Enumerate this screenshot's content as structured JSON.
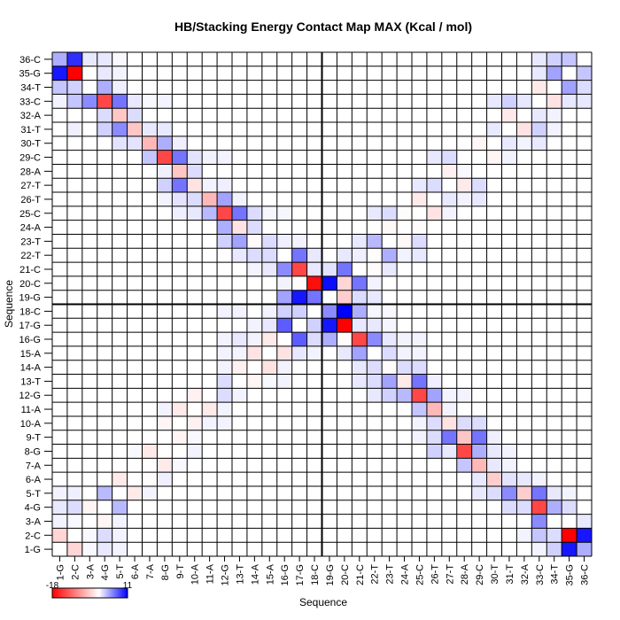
{
  "chart_data": {
    "type": "heatmap",
    "title": "HB/Stacking Energy Contact Map MAX (Kcal / mol)",
    "xlabel": "Sequence",
    "ylabel": "Sequence",
    "labels": [
      "1-G",
      "2-C",
      "3-A",
      "4-G",
      "5-T",
      "6-A",
      "7-A",
      "8-G",
      "9-T",
      "10-A",
      "11-A",
      "12-G",
      "13-T",
      "14-A",
      "15-A",
      "16-G",
      "17-G",
      "18-C",
      "19-G",
      "20-C",
      "21-C",
      "22-T",
      "23-T",
      "24-A",
      "25-C",
      "26-T",
      "27-T",
      "28-A",
      "29-C",
      "30-T",
      "31-T",
      "32-A",
      "33-C",
      "34-T",
      "35-G",
      "36-C"
    ],
    "colorbar": {
      "min": -18,
      "max": 11,
      "min_label": "-18",
      "max_label": "11",
      "min_color": "#ff0000",
      "mid_color": "#ffffff",
      "max_color": "#0000ff"
    },
    "grid": true,
    "cells_note_format": "[y_index, x_index, value]",
    "cells": [
      [
        36,
        1,
        3.5
      ],
      [
        36,
        2,
        9
      ],
      [
        36,
        3,
        1
      ],
      [
        36,
        4,
        1
      ],
      [
        36,
        5,
        0.3
      ],
      [
        36,
        33,
        1
      ],
      [
        36,
        34,
        2
      ],
      [
        36,
        35,
        2.5
      ],
      [
        35,
        1,
        10
      ],
      [
        35,
        2,
        -18
      ],
      [
        35,
        4,
        1
      ],
      [
        35,
        5,
        0.5
      ],
      [
        35,
        33,
        1
      ],
      [
        35,
        34,
        4
      ],
      [
        35,
        36,
        2.5
      ],
      [
        34,
        1,
        2.5
      ],
      [
        34,
        2,
        2
      ],
      [
        34,
        4,
        3.5
      ],
      [
        34,
        5,
        0.7
      ],
      [
        34,
        33,
        -1.5
      ],
      [
        34,
        35,
        4
      ],
      [
        34,
        36,
        1.5
      ],
      [
        33,
        1,
        0.5
      ],
      [
        33,
        2,
        2.5
      ],
      [
        33,
        3,
        5
      ],
      [
        33,
        4,
        -13
      ],
      [
        33,
        5,
        6
      ],
      [
        33,
        6,
        1
      ],
      [
        33,
        7,
        0.3
      ],
      [
        33,
        8,
        0.5
      ],
      [
        33,
        30,
        1
      ],
      [
        33,
        31,
        2
      ],
      [
        33,
        32,
        1
      ],
      [
        33,
        34,
        -2
      ],
      [
        33,
        35,
        1
      ],
      [
        33,
        36,
        1
      ],
      [
        32,
        4,
        1.5
      ],
      [
        32,
        5,
        -4
      ],
      [
        32,
        6,
        1.5
      ],
      [
        32,
        31,
        -1.5
      ],
      [
        32,
        33,
        1
      ],
      [
        32,
        34,
        0.5
      ],
      [
        31,
        2,
        0.7
      ],
      [
        31,
        4,
        2
      ],
      [
        31,
        5,
        5
      ],
      [
        31,
        6,
        -4
      ],
      [
        31,
        7,
        1
      ],
      [
        31,
        8,
        1
      ],
      [
        31,
        30,
        1
      ],
      [
        31,
        32,
        -2
      ],
      [
        31,
        33,
        2
      ],
      [
        31,
        34,
        0.5
      ],
      [
        30,
        5,
        1.2
      ],
      [
        30,
        6,
        1.2
      ],
      [
        30,
        7,
        -5
      ],
      [
        30,
        8,
        3.5
      ],
      [
        30,
        9,
        0.7
      ],
      [
        30,
        29,
        -0.7
      ],
      [
        30,
        31,
        1
      ],
      [
        30,
        32,
        0.5
      ],
      [
        30,
        33,
        1
      ],
      [
        29,
        7,
        2.5
      ],
      [
        29,
        8,
        -13
      ],
      [
        29,
        9,
        6
      ],
      [
        29,
        10,
        1.2
      ],
      [
        29,
        11,
        0.5
      ],
      [
        29,
        12,
        0.5
      ],
      [
        29,
        26,
        1
      ],
      [
        29,
        27,
        1.5
      ],
      [
        29,
        30,
        -0.7
      ],
      [
        29,
        31,
        0.5
      ],
      [
        28,
        8,
        0.7
      ],
      [
        28,
        9,
        -4
      ],
      [
        28,
        10,
        1.5
      ],
      [
        28,
        27,
        -1
      ],
      [
        28,
        28,
        0.3
      ],
      [
        27,
        8,
        2
      ],
      [
        27,
        9,
        6
      ],
      [
        27,
        10,
        -2
      ],
      [
        27,
        11,
        0.5
      ],
      [
        27,
        12,
        0.7
      ],
      [
        27,
        25,
        1
      ],
      [
        27,
        26,
        1.5
      ],
      [
        27,
        28,
        -1.5
      ],
      [
        27,
        29,
        1.5
      ],
      [
        26,
        8,
        0.5
      ],
      [
        26,
        9,
        1.2
      ],
      [
        26,
        10,
        1.5
      ],
      [
        26,
        11,
        -5
      ],
      [
        26,
        12,
        4
      ],
      [
        26,
        13,
        0.5
      ],
      [
        26,
        25,
        -1.5
      ],
      [
        26,
        27,
        1
      ],
      [
        26,
        28,
        0.5
      ],
      [
        26,
        29,
        1
      ],
      [
        25,
        9,
        0.7
      ],
      [
        25,
        10,
        1
      ],
      [
        25,
        11,
        3
      ],
      [
        25,
        12,
        -13
      ],
      [
        25,
        13,
        6
      ],
      [
        25,
        14,
        1.5
      ],
      [
        25,
        15,
        0.4
      ],
      [
        25,
        16,
        0.4
      ],
      [
        25,
        22,
        1
      ],
      [
        25,
        23,
        1.5
      ],
      [
        25,
        24,
        -0.2
      ],
      [
        25,
        26,
        -2
      ],
      [
        25,
        27,
        0.5
      ],
      [
        24,
        12,
        3.5
      ],
      [
        24,
        13,
        -2
      ],
      [
        24,
        14,
        1.5
      ],
      [
        24,
        23,
        -0.5
      ],
      [
        24,
        25,
        -0.2
      ],
      [
        23,
        12,
        2
      ],
      [
        23,
        13,
        4
      ],
      [
        23,
        14,
        -0.3
      ],
      [
        23,
        15,
        1.5
      ],
      [
        23,
        16,
        0.7
      ],
      [
        23,
        17,
        0.5
      ],
      [
        23,
        21,
        1
      ],
      [
        23,
        22,
        3
      ],
      [
        23,
        24,
        -0.5
      ],
      [
        23,
        25,
        1.5
      ],
      [
        22,
        13,
        1
      ],
      [
        22,
        14,
        1.5
      ],
      [
        22,
        15,
        1.5
      ],
      [
        22,
        17,
        6
      ],
      [
        22,
        18,
        1
      ],
      [
        22,
        20,
        1
      ],
      [
        22,
        21,
        0.7
      ],
      [
        22,
        22,
        -0.2
      ],
      [
        22,
        23,
        3.5
      ],
      [
        22,
        24,
        0.5
      ],
      [
        22,
        25,
        1
      ],
      [
        21,
        14,
        0.5
      ],
      [
        21,
        15,
        1
      ],
      [
        21,
        16,
        5
      ],
      [
        21,
        17,
        -13
      ],
      [
        21,
        18,
        1
      ],
      [
        21,
        19,
        1.2
      ],
      [
        21,
        20,
        6
      ],
      [
        21,
        22,
        -0.3
      ],
      [
        21,
        23,
        1
      ],
      [
        20,
        16,
        0.5
      ],
      [
        20,
        17,
        -0.3
      ],
      [
        20,
        18,
        -17
      ],
      [
        20,
        19,
        10.5
      ],
      [
        20,
        20,
        -3
      ],
      [
        20,
        21,
        6
      ],
      [
        20,
        22,
        0.5
      ],
      [
        19,
        16,
        4
      ],
      [
        19,
        17,
        10
      ],
      [
        19,
        18,
        6
      ],
      [
        19,
        20,
        -3.5
      ],
      [
        19,
        21,
        1.5
      ],
      [
        19,
        22,
        1
      ],
      [
        18,
        12,
        0.5
      ],
      [
        18,
        13,
        0.5
      ],
      [
        18,
        15,
        0.5
      ],
      [
        18,
        16,
        2
      ],
      [
        18,
        17,
        2
      ],
      [
        18,
        19,
        5
      ],
      [
        18,
        20,
        11
      ],
      [
        18,
        21,
        3.5
      ],
      [
        18,
        22,
        0.4
      ],
      [
        18,
        23,
        0.3
      ],
      [
        17,
        14,
        0.5
      ],
      [
        17,
        15,
        1
      ],
      [
        17,
        16,
        7
      ],
      [
        17,
        18,
        2
      ],
      [
        17,
        19,
        10
      ],
      [
        17,
        20,
        -18
      ],
      [
        17,
        21,
        1
      ],
      [
        17,
        22,
        1
      ],
      [
        17,
        23,
        0.4
      ],
      [
        16,
        12,
        0.5
      ],
      [
        16,
        13,
        1
      ],
      [
        16,
        14,
        0.5
      ],
      [
        16,
        15,
        -1.5
      ],
      [
        16,
        17,
        7
      ],
      [
        16,
        18,
        1.5
      ],
      [
        16,
        19,
        3.5
      ],
      [
        16,
        20,
        -0.3
      ],
      [
        16,
        21,
        -13
      ],
      [
        16,
        22,
        5
      ],
      [
        16,
        23,
        1
      ],
      [
        16,
        24,
        0.5
      ],
      [
        16,
        25,
        0.5
      ],
      [
        15,
        12,
        0.5
      ],
      [
        15,
        13,
        0.5
      ],
      [
        15,
        14,
        -2
      ],
      [
        15,
        16,
        -2
      ],
      [
        15,
        17,
        1
      ],
      [
        15,
        18,
        0.5
      ],
      [
        15,
        20,
        1
      ],
      [
        15,
        21,
        4
      ],
      [
        15,
        23,
        1.5
      ],
      [
        15,
        24,
        0.5
      ],
      [
        15,
        25,
        0.5
      ],
      [
        14,
        12,
        0.5
      ],
      [
        14,
        13,
        -1
      ],
      [
        14,
        15,
        -2
      ],
      [
        14,
        16,
        0.5
      ],
      [
        14,
        21,
        1
      ],
      [
        14,
        22,
        1.5
      ],
      [
        14,
        23,
        -0.3
      ],
      [
        14,
        24,
        1.5
      ],
      [
        14,
        25,
        1.5
      ],
      [
        13,
        12,
        1.5
      ],
      [
        13,
        14,
        -0.7
      ],
      [
        13,
        15,
        0.3
      ],
      [
        13,
        16,
        0.5
      ],
      [
        13,
        21,
        1
      ],
      [
        13,
        22,
        1.5
      ],
      [
        13,
        23,
        4
      ],
      [
        13,
        24,
        -1.5
      ],
      [
        13,
        25,
        6
      ],
      [
        13,
        26,
        0.7
      ],
      [
        12,
        10,
        -1
      ],
      [
        12,
        12,
        1.5
      ],
      [
        12,
        13,
        0.5
      ],
      [
        12,
        22,
        1
      ],
      [
        12,
        23,
        2
      ],
      [
        12,
        24,
        3
      ],
      [
        12,
        25,
        -13
      ],
      [
        12,
        26,
        4
      ],
      [
        12,
        27,
        0.5
      ],
      [
        12,
        28,
        0.5
      ],
      [
        11,
        8,
        0.5
      ],
      [
        11,
        9,
        -1.5
      ],
      [
        11,
        11,
        -1.5
      ],
      [
        11,
        12,
        0.5
      ],
      [
        11,
        25,
        2.5
      ],
      [
        11,
        26,
        -5
      ],
      [
        11,
        27,
        0.5
      ],
      [
        10,
        8,
        -0.7
      ],
      [
        10,
        10,
        -1
      ],
      [
        10,
        11,
        0.5
      ],
      [
        10,
        12,
        0.5
      ],
      [
        10,
        25,
        0.5
      ],
      [
        10,
        26,
        1.5
      ],
      [
        10,
        27,
        -2
      ],
      [
        10,
        28,
        1.5
      ],
      [
        10,
        29,
        1.5
      ],
      [
        9,
        9,
        -0.7
      ],
      [
        9,
        10,
        0.3
      ],
      [
        9,
        25,
        0.5
      ],
      [
        9,
        26,
        1.5
      ],
      [
        9,
        27,
        6
      ],
      [
        9,
        28,
        -4
      ],
      [
        9,
        29,
        6
      ],
      [
        9,
        30,
        0.7
      ],
      [
        8,
        6,
        0.3
      ],
      [
        8,
        7,
        -1.5
      ],
      [
        8,
        10,
        0.5
      ],
      [
        8,
        26,
        2
      ],
      [
        8,
        27,
        1
      ],
      [
        8,
        28,
        -13
      ],
      [
        8,
        29,
        3.5
      ],
      [
        8,
        30,
        1
      ],
      [
        8,
        31,
        0.5
      ],
      [
        7,
        8,
        -1.5
      ],
      [
        7,
        9,
        0.3
      ],
      [
        7,
        28,
        2.5
      ],
      [
        7,
        29,
        -5
      ],
      [
        7,
        30,
        1
      ],
      [
        7,
        31,
        0.5
      ],
      [
        6,
        5,
        -1.5
      ],
      [
        6,
        7,
        -0.2
      ],
      [
        6,
        8,
        0.7
      ],
      [
        6,
        29,
        1
      ],
      [
        6,
        30,
        -3.5
      ],
      [
        6,
        31,
        1.2
      ],
      [
        6,
        32,
        1
      ],
      [
        6,
        33,
        0.5
      ],
      [
        5,
        1,
        0.5
      ],
      [
        5,
        2,
        0.7
      ],
      [
        5,
        4,
        3
      ],
      [
        5,
        6,
        -1.5
      ],
      [
        5,
        7,
        0.5
      ],
      [
        5,
        29,
        1
      ],
      [
        5,
        30,
        1.5
      ],
      [
        5,
        31,
        5
      ],
      [
        5,
        32,
        -3.5
      ],
      [
        5,
        33,
        6
      ],
      [
        5,
        34,
        1
      ],
      [
        5,
        35,
        0.5
      ],
      [
        4,
        1,
        1
      ],
      [
        4,
        2,
        1.5
      ],
      [
        4,
        3,
        -0.7
      ],
      [
        4,
        5,
        3
      ],
      [
        4,
        31,
        1.5
      ],
      [
        4,
        32,
        1.5
      ],
      [
        4,
        33,
        -13
      ],
      [
        4,
        34,
        3.5
      ],
      [
        4,
        35,
        1.5
      ],
      [
        3,
        1,
        0.5
      ],
      [
        3,
        2,
        0.3
      ],
      [
        3,
        4,
        -0.7
      ],
      [
        3,
        5,
        0.5
      ],
      [
        3,
        33,
        5
      ],
      [
        3,
        36,
        1
      ],
      [
        2,
        1,
        -3
      ],
      [
        2,
        3,
        0.3
      ],
      [
        2,
        4,
        1.5
      ],
      [
        2,
        5,
        0.5
      ],
      [
        2,
        32,
        0.5
      ],
      [
        2,
        33,
        2.5
      ],
      [
        2,
        34,
        1.5
      ],
      [
        2,
        35,
        -18
      ],
      [
        2,
        36,
        10
      ],
      [
        1,
        2,
        -3
      ],
      [
        1,
        3,
        0.3
      ],
      [
        1,
        4,
        1
      ],
      [
        1,
        5,
        0.5
      ],
      [
        1,
        33,
        0.5
      ],
      [
        1,
        34,
        2
      ],
      [
        1,
        35,
        10
      ],
      [
        1,
        36,
        3.5
      ]
    ]
  }
}
